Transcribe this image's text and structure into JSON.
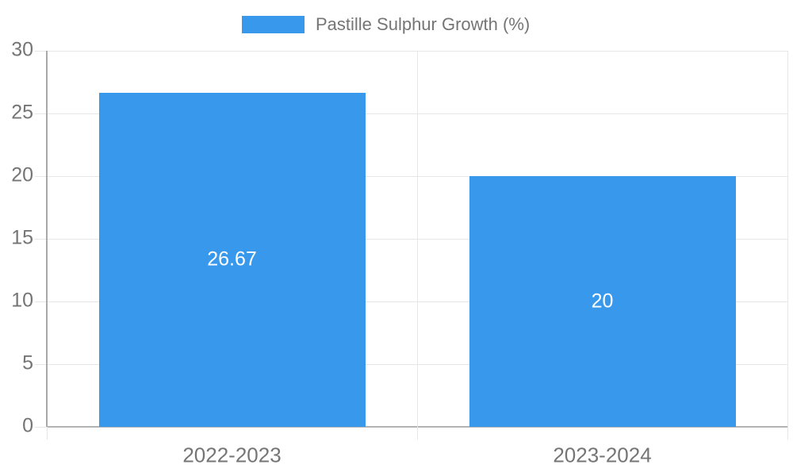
{
  "legend": {
    "label": "Pastille Sulphur Growth (%)"
  },
  "chart_data": {
    "type": "bar",
    "title": "Pastille Sulphur Growth (%)",
    "categories": [
      "2022-2023",
      "2023-2024"
    ],
    "values": [
      26.67,
      20
    ],
    "value_labels": [
      "26.67",
      "20"
    ],
    "series_name": "Pastille Sulphur Growth (%)",
    "xlabel": "",
    "ylabel": "",
    "ylim": [
      0,
      30
    ],
    "yticks": [
      0,
      5,
      10,
      15,
      20,
      25,
      30
    ],
    "grid": true,
    "legend_position": "top-center",
    "bar_color": "#3899ec",
    "value_label_color": "#ffffff",
    "axis_text_color": "#757575",
    "gridline_color": "#e6e6e6",
    "baseline_color": "#b3b3b3"
  }
}
